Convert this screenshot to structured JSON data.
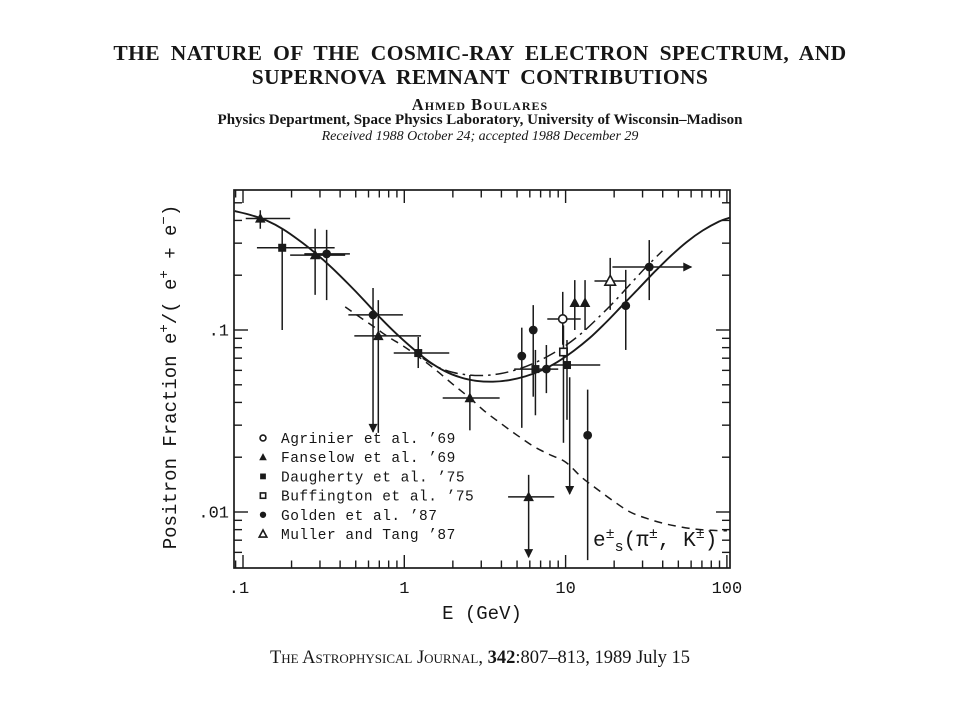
{
  "page": {
    "bg": "#ffffff",
    "ink": "#1a1a1a"
  },
  "header": {
    "title_line1": "THE NATURE OF THE COSMIC-RAY ELECTRON SPECTRUM, AND",
    "title_line2": "SUPERNOVA REMNANT CONTRIBUTIONS",
    "author": "Ahmed Boulares",
    "affiliation": "Physics Department, Space Physics Laboratory, University of Wisconsin–Madison",
    "received": "Received 1988 October 24; accepted 1988 December 29"
  },
  "footer": {
    "journal": "The Astrophysical Journal, ",
    "volume": "342",
    "rest": ":807–813, 1989 July 15"
  },
  "chart_data": {
    "type": "scatter",
    "x_scale": "log",
    "y_scale": "log",
    "xlim": [
      0.088,
      105
    ],
    "ylim": [
      0.0049,
      0.59
    ],
    "xlabel": "E (GeV)",
    "ylabel": "Positron Fraction e+/( e+ + e-)",
    "ylabel_segments": [
      {
        "t": "Positron Fraction e"
      },
      {
        "t": "+",
        "pos": "sup"
      },
      {
        "t": "/( e"
      },
      {
        "t": "+",
        "pos": "sup"
      },
      {
        "t": " + e"
      },
      {
        "t": "−",
        "pos": "sup"
      },
      {
        "t": ")"
      }
    ],
    "x_ticks": [
      {
        "v": 0.1,
        "label": ".1"
      },
      {
        "v": 1,
        "label": "1"
      },
      {
        "v": 10,
        "label": "10"
      },
      {
        "v": 100,
        "label": "100"
      }
    ],
    "y_ticks": [
      {
        "v": 0.1,
        "label": ".1"
      },
      {
        "v": 0.01,
        "label": ".01"
      }
    ],
    "grid": false,
    "legend_position": "lower-left-inside",
    "legend": [
      {
        "marker": "circle-open",
        "label": "Agrinier et al. ’69"
      },
      {
        "marker": "triangle-filled",
        "label": "Fanselow et al. ’69"
      },
      {
        "marker": "square-filled",
        "label": "Daugherty et al. ’75"
      },
      {
        "marker": "square-open",
        "label": "Buffington et al. ’75"
      },
      {
        "marker": "circle-filled",
        "label": "Golden et al. ’87"
      },
      {
        "marker": "triangle-open",
        "label": "Muller and Tang ’87"
      }
    ],
    "annotation": "e±s(π±, K±)",
    "annotation_segments": [
      {
        "t": "e"
      },
      {
        "t": "±",
        "pos": "sup"
      },
      {
        "t": "s",
        "pos": "sub"
      },
      {
        "t": "(π"
      },
      {
        "t": "±",
        "pos": "sup"
      },
      {
        "t": ", K"
      },
      {
        "t": "±",
        "pos": "sup"
      },
      {
        "t": ")"
      }
    ],
    "series": [
      {
        "name": "total positron fraction model",
        "style": "solid",
        "x": [
          0.089,
          0.112,
          0.141,
          0.178,
          0.224,
          0.282,
          0.355,
          0.447,
          0.562,
          0.708,
          0.891,
          1.122,
          1.413,
          1.778,
          2.239,
          2.818,
          3.548,
          4.467,
          5.623,
          7.079,
          8.913,
          11.22,
          14.13,
          17.78,
          22.39,
          28.18,
          35.48,
          44.67,
          56.23,
          70.79,
          89.13,
          105
        ],
        "y": [
          0.45,
          0.428,
          0.398,
          0.357,
          0.31,
          0.264,
          0.22,
          0.18,
          0.146,
          0.117,
          0.0955,
          0.0795,
          0.0675,
          0.0595,
          0.0548,
          0.0525,
          0.052,
          0.053,
          0.0556,
          0.06,
          0.0668,
          0.0768,
          0.0905,
          0.11,
          0.136,
          0.168,
          0.208,
          0.254,
          0.304,
          0.352,
          0.394,
          0.415
        ]
      },
      {
        "name": "model variant with SNR contribution",
        "style": "dashdot",
        "x": [
          1.3,
          1.6,
          2.0,
          2.51,
          3.16,
          3.98,
          5.01,
          6.31,
          7.94,
          10,
          12.6,
          15.8,
          20,
          25.1,
          31.6,
          39.8
        ],
        "y": [
          0.07,
          0.0628,
          0.0585,
          0.0566,
          0.0563,
          0.0577,
          0.0607,
          0.0655,
          0.0725,
          0.0822,
          0.0962,
          0.116,
          0.143,
          0.178,
          0.222,
          0.272
        ]
      },
      {
        "name": "secondary e± from pion/kaon decay",
        "style": "dashed",
        "x": [
          0.43,
          0.5,
          0.63,
          0.79,
          1.0,
          1.26,
          1.58,
          2.0,
          2.51,
          3.16,
          3.98,
          5.01,
          6.31,
          7.94,
          10,
          12.6,
          15.8,
          20,
          25.1,
          31.6,
          39.8,
          50.1,
          63.1,
          79.4,
          100
        ],
        "y": [
          0.134,
          0.122,
          0.106,
          0.092,
          0.081,
          0.07,
          0.06,
          0.0503,
          0.0428,
          0.0357,
          0.0306,
          0.0264,
          0.023,
          0.0207,
          0.0188,
          0.0155,
          0.0133,
          0.0114,
          0.01,
          0.00924,
          0.00869,
          0.00832,
          0.00806,
          0.00793,
          0.00788
        ]
      }
    ],
    "points": [
      {
        "x": 0.128,
        "y": 0.41,
        "marker": "triangle-filled",
        "xlo": 0.104,
        "xhi": 0.196,
        "ylo": 0.36,
        "yhi": 0.455
      },
      {
        "x": 0.175,
        "y": 0.283,
        "marker": "square-filled",
        "xlo": 0.122,
        "xhi": 0.37,
        "ylo": 0.1,
        "yhi": 0.36
      },
      {
        "x": 0.28,
        "y": 0.258,
        "marker": "triangle-filled",
        "xlo": 0.196,
        "xhi": 0.43,
        "ylo": 0.156,
        "yhi": 0.36
      },
      {
        "x": 0.33,
        "y": 0.262,
        "marker": "circle-filled",
        "xlo": 0.24,
        "xhi": 0.46,
        "ylo": 0.146,
        "yhi": 0.355
      },
      {
        "x": 0.64,
        "y": 0.121,
        "marker": "circle-filled",
        "xlo": 0.45,
        "xhi": 0.98,
        "yhi": 0.17,
        "arrow": "down",
        "arrow_to": 0.0272
      },
      {
        "x": 0.69,
        "y": 0.0928,
        "marker": "triangle-filled",
        "xlo": 0.49,
        "xhi": 1.27,
        "ylo": 0.0272,
        "yhi": 0.146
      },
      {
        "x": 1.22,
        "y": 0.0747,
        "marker": "square-filled",
        "xlo": 0.86,
        "xhi": 1.9,
        "ylo": 0.0618,
        "yhi": 0.0915
      },
      {
        "x": 2.55,
        "y": 0.0423,
        "marker": "triangle-filled",
        "xlo": 1.73,
        "xhi": 3.9,
        "ylo": 0.0281,
        "yhi": 0.0566
      },
      {
        "x": 5.35,
        "y": 0.072,
        "marker": "circle-filled",
        "ylo": 0.029,
        "yhi": 0.103
      },
      {
        "x": 6.3,
        "y": 0.1,
        "marker": "circle-filled",
        "ylo": 0.043,
        "yhi": 0.137
      },
      {
        "x": 6.5,
        "y": 0.061,
        "marker": "square-filled",
        "xlo": 4.8,
        "xhi": 9.0,
        "ylo": 0.034,
        "yhi": 0.0777
      },
      {
        "x": 7.6,
        "y": 0.061,
        "marker": "circle-filled",
        "ylo": 0.045,
        "yhi": 0.0827
      },
      {
        "x": 5.9,
        "y": 0.0121,
        "marker": "triangle-filled",
        "xlo": 4.4,
        "xhi": 8.5,
        "yhi": 0.016,
        "arrow": "down",
        "arrow_to": 0.00558
      },
      {
        "x": 9.6,
        "y": 0.115,
        "marker": "circle-open",
        "xlo": 7.7,
        "xhi": 12.4,
        "ylo": 0.083,
        "yhi": 0.162
      },
      {
        "x": 9.7,
        "y": 0.0757,
        "marker": "square-open",
        "ylo": 0.024,
        "yhi": 0.106
      },
      {
        "x": 10.2,
        "y": 0.0642,
        "marker": "square-filled",
        "xlo": 8.2,
        "xhi": 16.4,
        "ylo": 0.0321,
        "yhi": 0.0881
      },
      {
        "x": 11.4,
        "y": 0.141,
        "marker": "triangle-filled",
        "ylo": 0.1,
        "yhi": 0.188
      },
      {
        "x": 13.2,
        "y": 0.141,
        "marker": "triangle-filled",
        "ylo": 0.1,
        "yhi": 0.188
      },
      {
        "x": 13.7,
        "y": 0.0264,
        "marker": "circle-filled",
        "ylo": 0.00544,
        "yhi": 0.047
      },
      {
        "x": 18.9,
        "y": 0.186,
        "marker": "triangle-open",
        "xlo": 15.1,
        "xhi": 23.5,
        "ylo": 0.129,
        "yhi": 0.249
      },
      {
        "x": 23.6,
        "y": 0.136,
        "marker": "circle-filled",
        "ylo": 0.0777,
        "yhi": 0.214
      },
      {
        "x": 33,
        "y": 0.222,
        "marker": "circle-filled",
        "xlo": 19.5,
        "ylo": 0.146,
        "yhi": 0.312,
        "arrow": "right",
        "arrow_to": 61
      }
    ],
    "arrows": [
      {
        "x": 10.6,
        "from": 0.055,
        "to": 0.0124,
        "dir": "down"
      }
    ]
  }
}
